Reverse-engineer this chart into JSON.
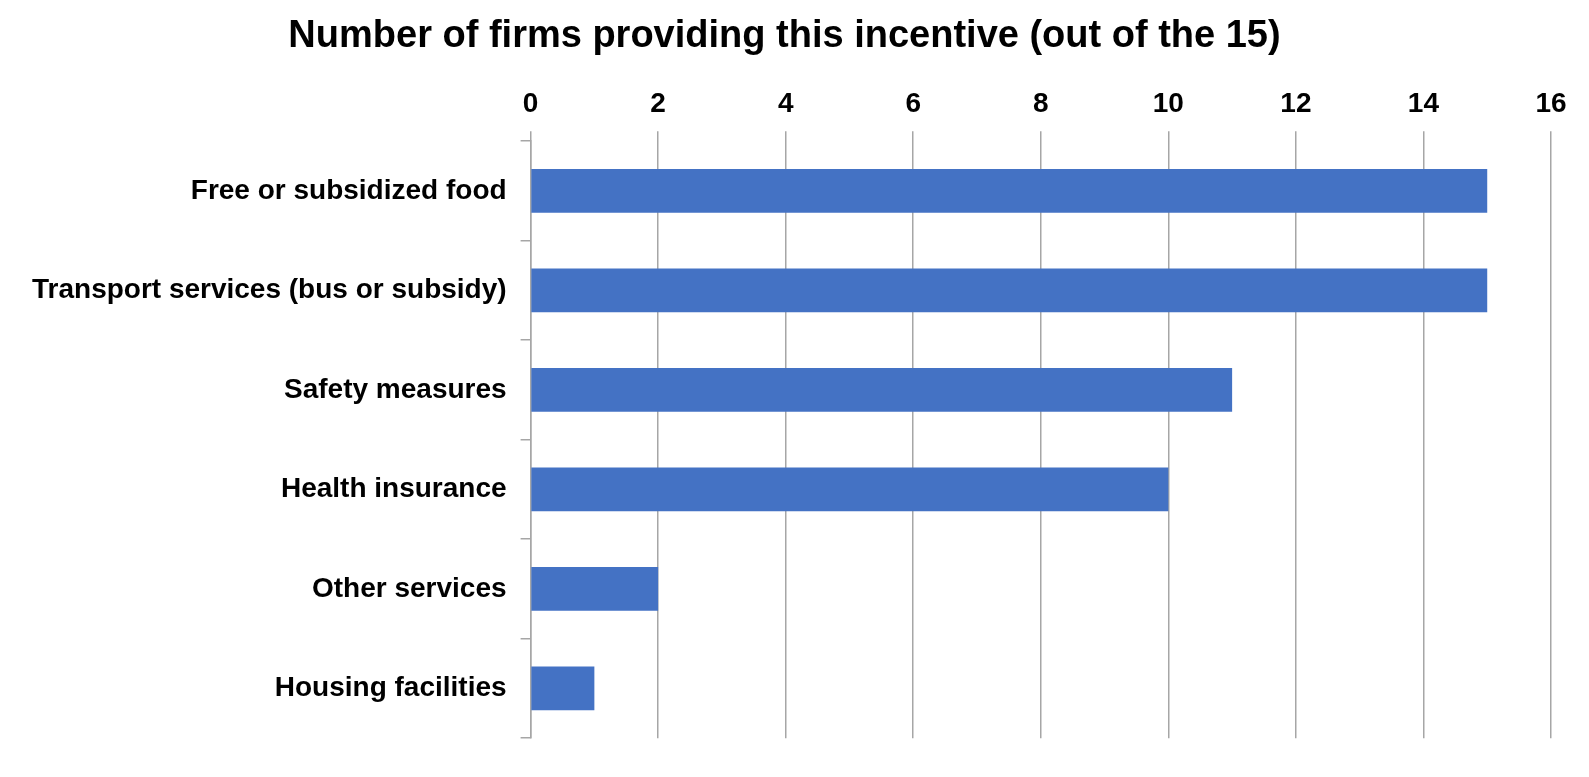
{
  "chart_data": {
    "type": "bar",
    "orientation": "horizontal",
    "title": "Number of firms providing this incentive (out of the 15)",
    "categories": [
      "Free or subsidized food",
      "Transport services (bus or subsidy)",
      "Safety measures",
      "Health insurance",
      "Other services",
      "Housing facilities"
    ],
    "values": [
      15,
      15,
      11,
      10,
      2,
      1
    ],
    "color": "#4472c4",
    "xlim": [
      0,
      16
    ],
    "xticks": [
      0,
      2,
      4,
      6,
      8,
      10,
      12,
      14,
      16
    ],
    "grid": "x",
    "legend": false
  }
}
